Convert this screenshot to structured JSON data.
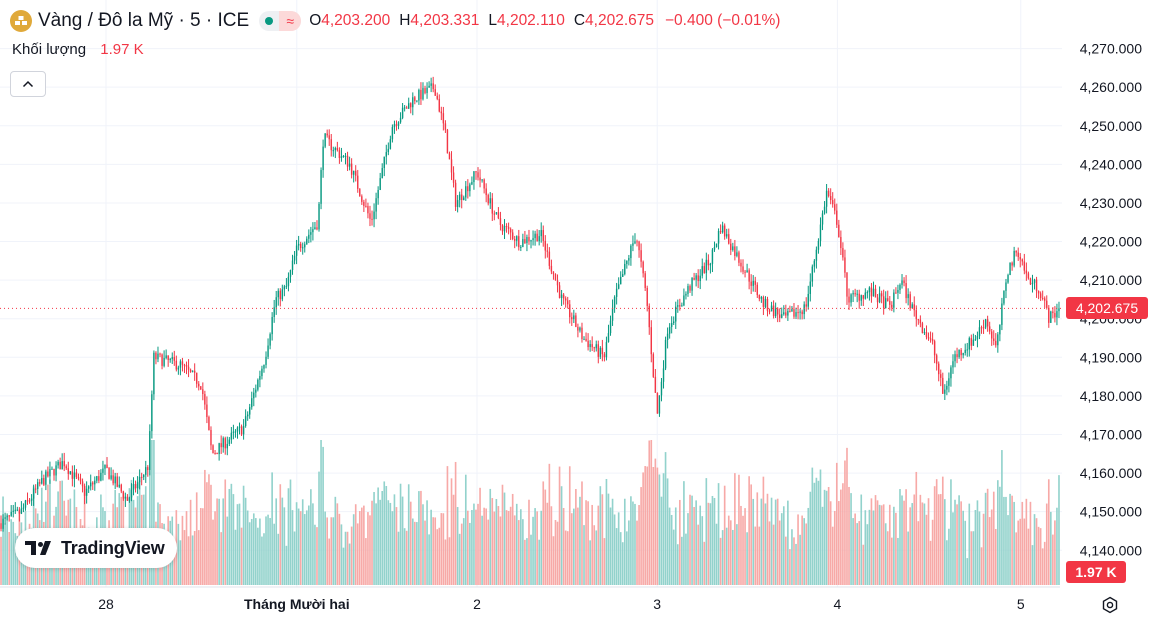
{
  "header": {
    "symbol_title": "Vàng / Đô la Mỹ · 5 · ICE",
    "ohlc": [
      {
        "key": "O",
        "value": "4,203.200"
      },
      {
        "key": "H",
        "value": "4,203.331"
      },
      {
        "key": "L",
        "value": "4,202.110"
      },
      {
        "key": "C",
        "value": "4,202.675"
      }
    ],
    "change": "−0.400 (−0.01%)",
    "market_status_icon": "market-open-dot",
    "data_type_icon": "approx-wave"
  },
  "volume_legend": {
    "label": "Khối lượng",
    "value": "1.97 K"
  },
  "logo": {
    "text": "TradingView"
  },
  "price_scale": {
    "last_price_label": "4,202.675",
    "volume_label": "1.97 K"
  },
  "colors": {
    "up": "#089981",
    "down": "#f23645",
    "volume_up": "#92d2cc",
    "volume_down": "#f7a9a7",
    "grid": "#f0f3fa",
    "last_price": "#f23645"
  },
  "chart_data": {
    "type": "candlestick",
    "title": "",
    "interval": "5 min",
    "ylim": [
      4131,
      4273
    ],
    "yticks": [
      "4,270.000",
      "4,260.000",
      "4,250.000",
      "4,240.000",
      "4,230.000",
      "4,220.000",
      "4,210.000",
      "4,200.000",
      "4,190.000",
      "4,180.000",
      "4,170.000",
      "4,160.000",
      "4,150.000",
      "4,140.000"
    ],
    "ytick_values": [
      4270,
      4260,
      4250,
      4240,
      4230,
      4220,
      4210,
      4200,
      4190,
      4180,
      4170,
      4160,
      4150,
      4140
    ],
    "xticks": [
      {
        "label": "28",
        "t": 0.1
      },
      {
        "label": "Tháng Mười hai",
        "t": 0.28
      },
      {
        "label": "2",
        "t": 0.45
      },
      {
        "label": "3",
        "t": 0.62
      },
      {
        "label": "4",
        "t": 0.79
      },
      {
        "label": "5",
        "t": 0.963
      }
    ],
    "last_price": 4202.675,
    "price_path": [
      [
        0.0,
        4147
      ],
      [
        0.02,
        4150
      ],
      [
        0.04,
        4158
      ],
      [
        0.06,
        4163
      ],
      [
        0.08,
        4155
      ],
      [
        0.1,
        4161
      ],
      [
        0.12,
        4153
      ],
      [
        0.14,
        4162
      ],
      [
        0.145,
        4190
      ],
      [
        0.17,
        4188
      ],
      [
        0.19,
        4183
      ],
      [
        0.2,
        4165
      ],
      [
        0.23,
        4172
      ],
      [
        0.25,
        4190
      ],
      [
        0.26,
        4205
      ],
      [
        0.27,
        4208
      ],
      [
        0.28,
        4218
      ],
      [
        0.3,
        4225
      ],
      [
        0.305,
        4247
      ],
      [
        0.33,
        4240
      ],
      [
        0.35,
        4225
      ],
      [
        0.37,
        4250
      ],
      [
        0.39,
        4257
      ],
      [
        0.41,
        4260
      ],
      [
        0.42,
        4248
      ],
      [
        0.43,
        4230
      ],
      [
        0.45,
        4238
      ],
      [
        0.47,
        4225
      ],
      [
        0.49,
        4220
      ],
      [
        0.51,
        4222
      ],
      [
        0.53,
        4205
      ],
      [
        0.55,
        4195
      ],
      [
        0.57,
        4190
      ],
      [
        0.58,
        4205
      ],
      [
        0.6,
        4222
      ],
      [
        0.61,
        4205
      ],
      [
        0.62,
        4175
      ],
      [
        0.63,
        4198
      ],
      [
        0.65,
        4208
      ],
      [
        0.67,
        4215
      ],
      [
        0.68,
        4224
      ],
      [
        0.7,
        4214
      ],
      [
        0.72,
        4204
      ],
      [
        0.74,
        4200
      ],
      [
        0.76,
        4203
      ],
      [
        0.77,
        4218
      ],
      [
        0.78,
        4233
      ],
      [
        0.79,
        4225
      ],
      [
        0.8,
        4205
      ],
      [
        0.82,
        4207
      ],
      [
        0.84,
        4203
      ],
      [
        0.85,
        4210
      ],
      [
        0.86,
        4203
      ],
      [
        0.88,
        4193
      ],
      [
        0.89,
        4180
      ],
      [
        0.9,
        4190
      ],
      [
        0.92,
        4195
      ],
      [
        0.93,
        4200
      ],
      [
        0.94,
        4192
      ],
      [
        0.95,
        4212
      ],
      [
        0.96,
        4218
      ],
      [
        0.97,
        4210
      ],
      [
        0.98,
        4208
      ],
      [
        0.99,
        4200
      ],
      [
        1.0,
        4202.7
      ]
    ],
    "volume_max": 2.6
  }
}
